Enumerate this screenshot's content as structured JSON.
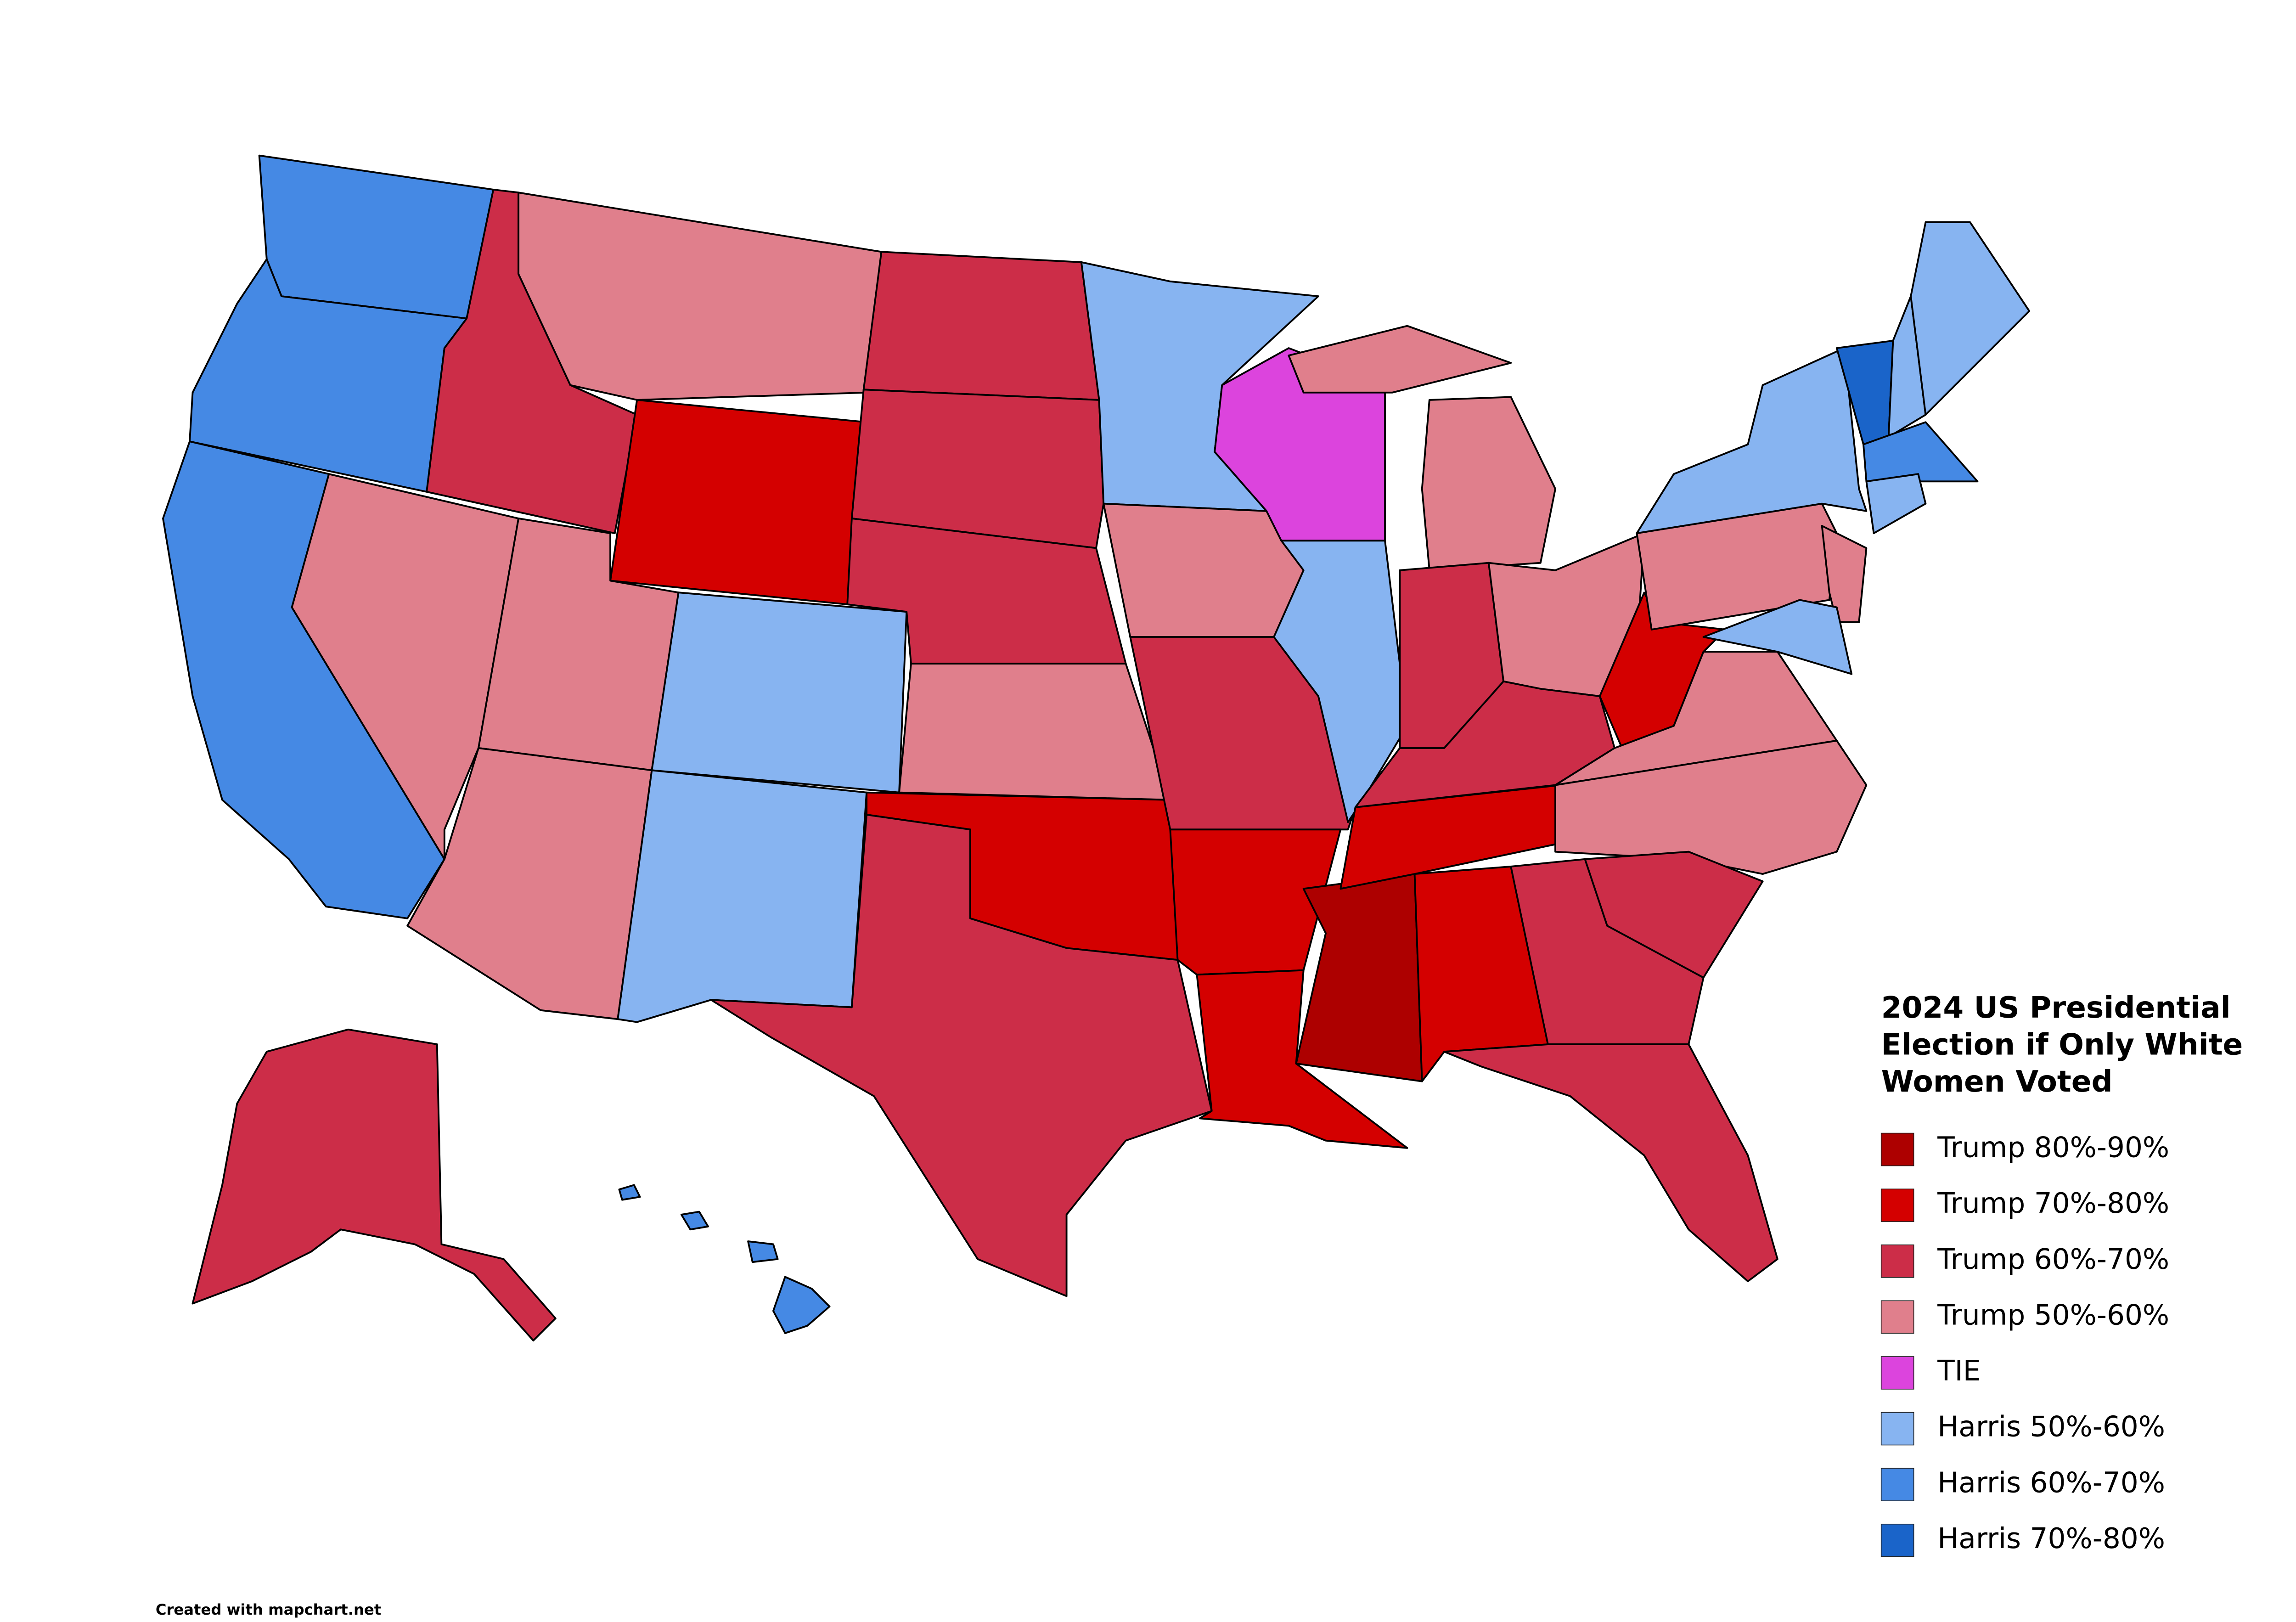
{
  "title": "2024 US Presidential Election if Only White Women Voted",
  "legend": [
    {
      "label": "Trump 80%-90%",
      "color": "#ad0000"
    },
    {
      "label": "Trump 70%-80%",
      "color": "#d40000"
    },
    {
      "label": "Trump 60%-70%",
      "color": "#cc2d48"
    },
    {
      "label": "Trump 50%-60%",
      "color": "#e07f8c"
    },
    {
      "label": "TIE",
      "color": "#dc44dd"
    },
    {
      "label": "Harris 50%-60%",
      "color": "#87b4f1"
    },
    {
      "label": "Harris 60%-70%",
      "color": "#4589e4"
    },
    {
      "label": "Harris 70%-80%",
      "color": "#1a64c9"
    }
  ],
  "credit": "Created with mapchart.net"
}
